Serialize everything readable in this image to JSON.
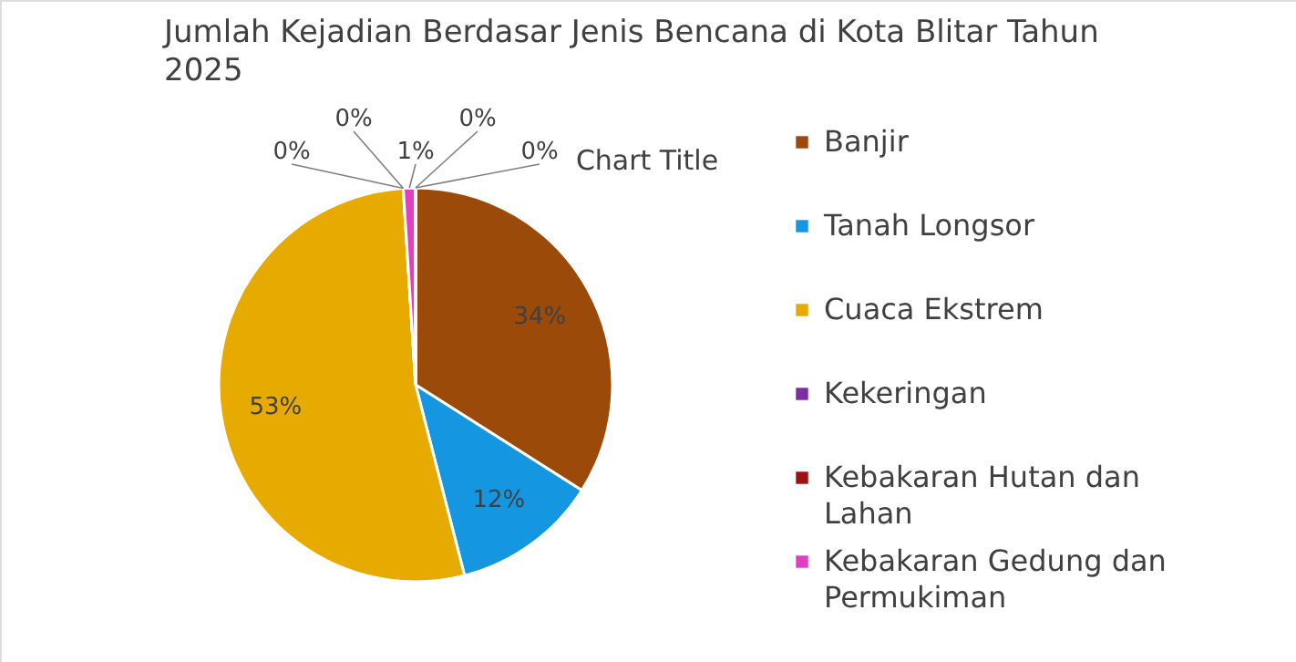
{
  "chart_data": {
    "type": "pie",
    "title": "Jumlah Kejadian Berdasar Jenis Bencana di Kota Blitar Tahun 2025",
    "categories": [
      "Banjir",
      "Tanah Longsor",
      "Cuaca Ekstrem",
      "Kekeringan",
      "Kebakaran Hutan dan Lahan",
      "Kebakaran Gedung dan Permukiman",
      null,
      null
    ],
    "values": [
      34,
      12,
      53,
      0,
      0,
      1,
      0,
      0
    ],
    "value_labels": [
      "34%",
      "12%",
      "53%",
      "0%",
      "0%",
      "1%",
      "0%",
      "0%"
    ],
    "colors": [
      "#9c4a0a",
      "#1496e0",
      "#e6aa00",
      "#7b2fa0",
      "#a01010",
      "#e040c0",
      "#8c8c8c",
      "#5a8a3a"
    ],
    "legend": "right",
    "annotations": [
      "Chart Title"
    ]
  }
}
